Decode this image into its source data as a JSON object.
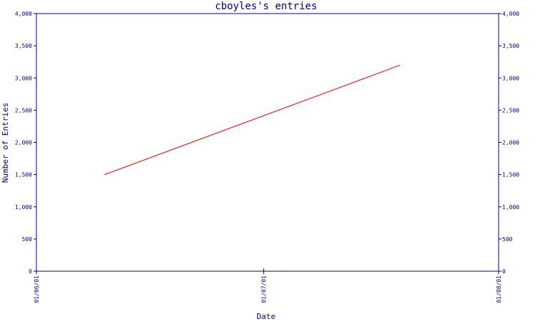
{
  "chart_data": {
    "type": "line",
    "title": "cboyles's entries",
    "xlabel": "Date",
    "ylabel": "Number of Entries",
    "x_ticks": [
      "01/06/01",
      "01/07/01",
      "01/08/01"
    ],
    "y_ticks": [
      "0",
      "500",
      "1,000",
      "1,500",
      "2,000",
      "2,500",
      "3,000",
      "3,500",
      "4,000"
    ],
    "ylim": [
      0,
      4000
    ],
    "xlim": [
      "01/06/01",
      "01/08/01"
    ],
    "series": [
      {
        "color": "#ff0000",
        "points": [
          {
            "x": "2001-06-10",
            "y": 1500
          },
          {
            "x": "2001-07-19",
            "y": 3200
          }
        ]
      }
    ],
    "grid": false,
    "right_axis": true,
    "colors": {
      "axis": "#000080",
      "line": "#ff0000",
      "background": "#ffffff"
    }
  }
}
